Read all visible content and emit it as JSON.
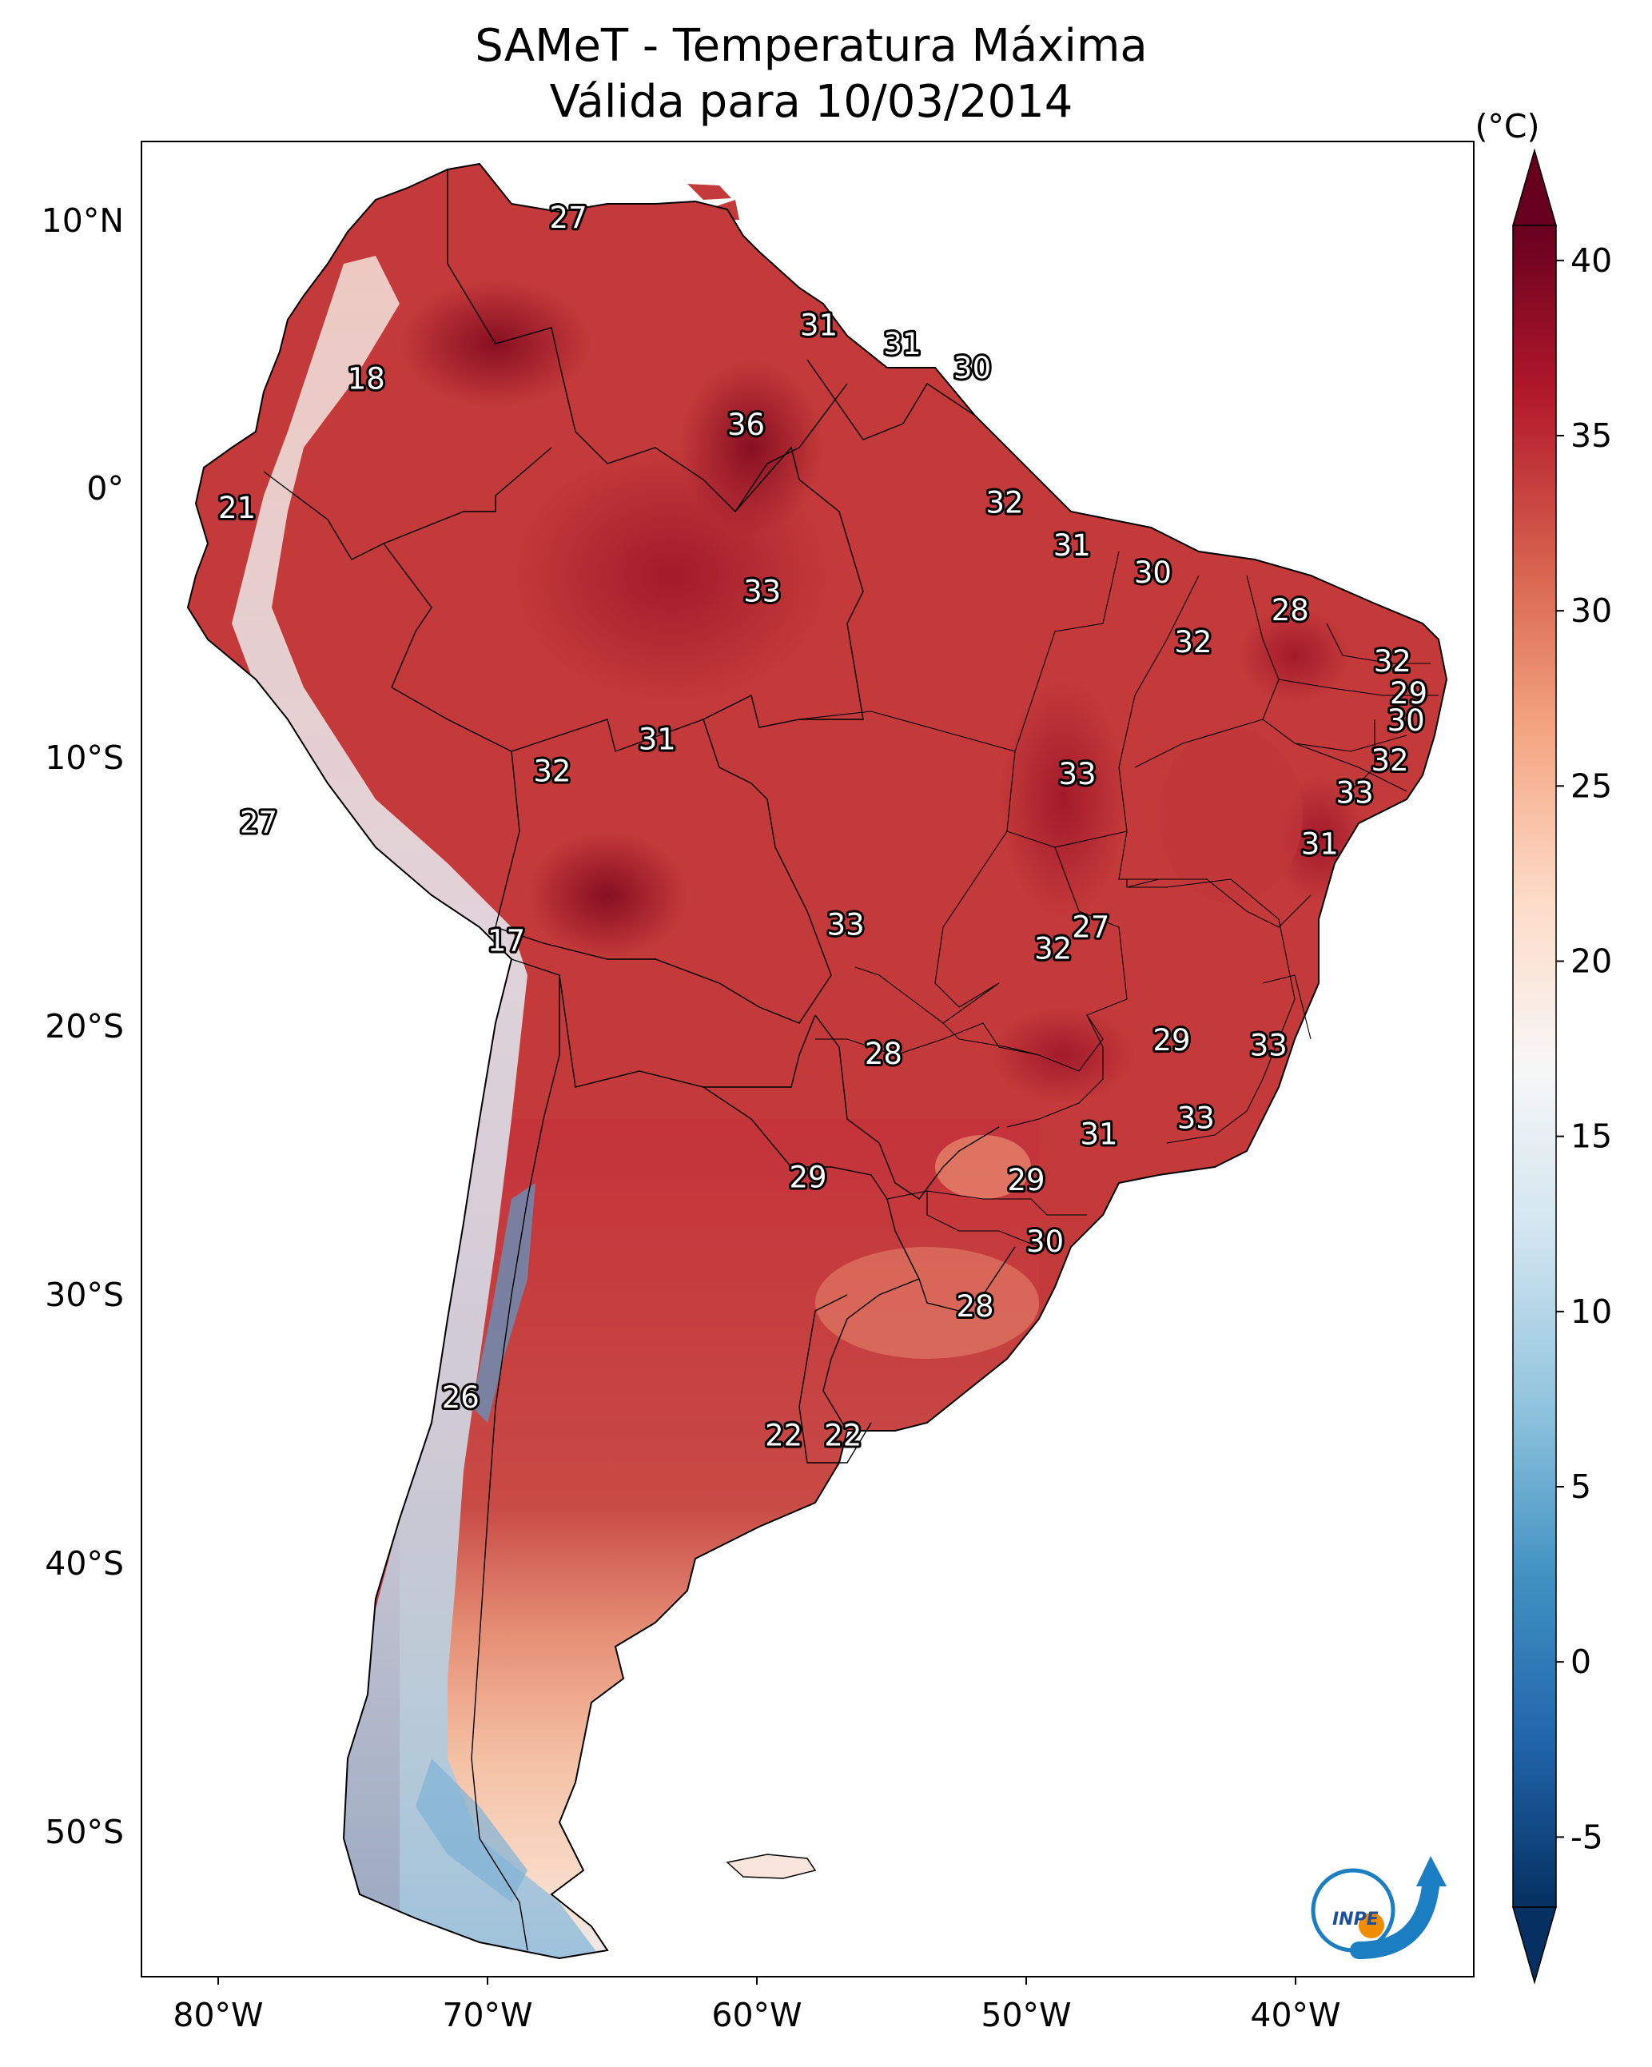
{
  "title_line1": "SAMeT - Temperatura Máxima",
  "title_line2": "Válida para 10/03/2014",
  "lon_ticks": [
    "80°W",
    "70°W",
    "60°W",
    "50°W",
    "40°W"
  ],
  "lat_ticks": [
    "10°N",
    "0°",
    "10°S",
    "20°S",
    "30°S",
    "40°S",
    "50°S"
  ],
  "colorbar": {
    "unit": "(°C)",
    "ticks": [
      "40",
      "35",
      "30",
      "25",
      "20",
      "15",
      "10",
      "5",
      "0",
      "-5"
    ],
    "range": [
      -7,
      41
    ],
    "colors": [
      "#053061",
      "#2166ac",
      "#4393c3",
      "#92c5de",
      "#d1e5f0",
      "#f7f7f7",
      "#fddbc7",
      "#f4a582",
      "#d6604d",
      "#b2182b",
      "#67001f"
    ]
  },
  "temperature_labels": [
    {
      "value": "27",
      "lon": -67,
      "lat": 10.5
    },
    {
      "value": "18",
      "lon": -74.5,
      "lat": 4.5
    },
    {
      "value": "31",
      "lon": -57.7,
      "lat": 6.5
    },
    {
      "value": "31",
      "lon": -54.6,
      "lat": 5.8
    },
    {
      "value": "30",
      "lon": -52,
      "lat": 4.9
    },
    {
      "value": "36",
      "lon": -60.4,
      "lat": 2.8
    },
    {
      "value": "21",
      "lon": -79.3,
      "lat": -0.3
    },
    {
      "value": "32",
      "lon": -50.8,
      "lat": -0.1
    },
    {
      "value": "31",
      "lon": -48.3,
      "lat": -1.7
    },
    {
      "value": "33",
      "lon": -59.8,
      "lat": -3.4
    },
    {
      "value": "30",
      "lon": -45.3,
      "lat": -2.7
    },
    {
      "value": "28",
      "lon": -40.2,
      "lat": -4.1
    },
    {
      "value": "32",
      "lon": -43.8,
      "lat": -5.3
    },
    {
      "value": "32",
      "lon": -36.4,
      "lat": -6
    },
    {
      "value": "29",
      "lon": -35.8,
      "lat": -7.2
    },
    {
      "value": "30",
      "lon": -35.9,
      "lat": -8.2
    },
    {
      "value": "31",
      "lon": -63.7,
      "lat": -8.9
    },
    {
      "value": "32",
      "lon": -67.6,
      "lat": -10.1
    },
    {
      "value": "33",
      "lon": -48.1,
      "lat": -10.2
    },
    {
      "value": "32",
      "lon": -36.5,
      "lat": -9.7
    },
    {
      "value": "33",
      "lon": -37.8,
      "lat": -10.9
    },
    {
      "value": "27",
      "lon": -78.5,
      "lat": -12
    },
    {
      "value": "31",
      "lon": -39.1,
      "lat": -12.8
    },
    {
      "value": "33",
      "lon": -56.7,
      "lat": -15.8
    },
    {
      "value": "27",
      "lon": -47.6,
      "lat": -15.9
    },
    {
      "value": "32",
      "lon": -49,
      "lat": -16.7
    },
    {
      "value": "17",
      "lon": -69.3,
      "lat": -16.4
    },
    {
      "value": "29",
      "lon": -44.6,
      "lat": -20.1
    },
    {
      "value": "33",
      "lon": -41,
      "lat": -20.3
    },
    {
      "value": "28",
      "lon": -55.3,
      "lat": -20.6
    },
    {
      "value": "33",
      "lon": -43.7,
      "lat": -23
    },
    {
      "value": "31",
      "lon": -47.3,
      "lat": -23.6
    },
    {
      "value": "29",
      "lon": -58.1,
      "lat": -25.2
    },
    {
      "value": "29",
      "lon": -50,
      "lat": -25.3
    },
    {
      "value": "30",
      "lon": -49.3,
      "lat": -27.6
    },
    {
      "value": "28",
      "lon": -51.9,
      "lat": -30
    },
    {
      "value": "26",
      "lon": -71,
      "lat": -33.4
    },
    {
      "value": "22",
      "lon": -59,
      "lat": -34.8
    },
    {
      "value": "22",
      "lon": -56.8,
      "lat": -34.8
    }
  ],
  "logo": {
    "text": "INPE"
  }
}
